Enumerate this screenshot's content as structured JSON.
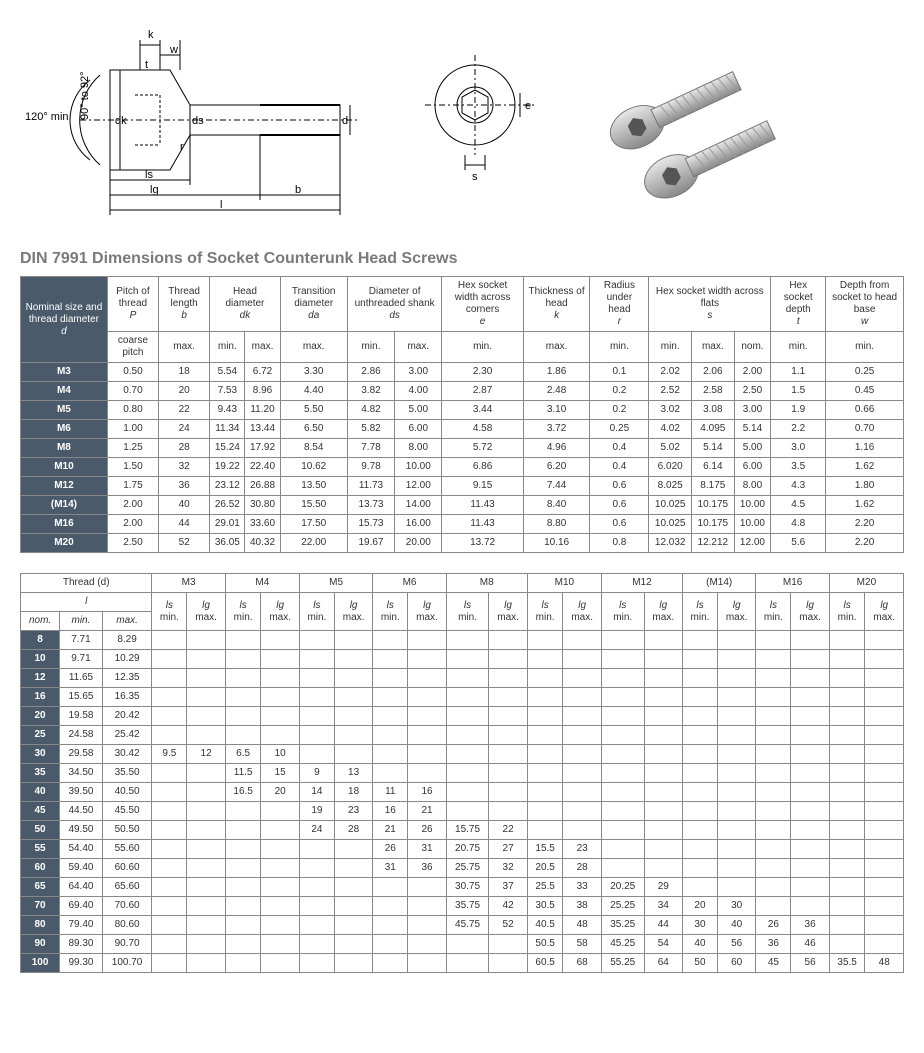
{
  "title": "DIN 7991 Dimensions of Socket Counterunk Head Screws",
  "diagram": {
    "angle_label": "120° min.",
    "angle_label2": "90° to 92°",
    "labels": [
      "k",
      "w",
      "t",
      "dk",
      "ds",
      "d",
      "r",
      "ls",
      "lg",
      "b",
      "l",
      "e",
      "s"
    ]
  },
  "table1": {
    "headers_top": [
      {
        "label": "Nominal size and thread diameter",
        "sub": "d",
        "rowspan": 2,
        "dark": true
      },
      {
        "label": "Pitch of thread",
        "sub": "P"
      },
      {
        "label": "Thread length",
        "sub": "b"
      },
      {
        "label": "Head diameter",
        "sub": "dk",
        "colspan": 2
      },
      {
        "label": "Transition diameter",
        "sub": "da"
      },
      {
        "label": "Diameter of unthreaded shank",
        "sub": "ds",
        "colspan": 2
      },
      {
        "label": "Hex socket width across corners",
        "sub": "e"
      },
      {
        "label": "Thickness of head",
        "sub": "k"
      },
      {
        "label": "Radius under head",
        "sub": "r"
      },
      {
        "label": "Hex socket width across flats",
        "sub": "s",
        "colspan": 3
      },
      {
        "label": "Hex socket depth",
        "sub": "t"
      },
      {
        "label": "Depth from socket to head base",
        "sub": "w"
      }
    ],
    "headers_sub": [
      "coarse pitch",
      "max.",
      "min.",
      "max.",
      "max.",
      "min.",
      "max.",
      "min.",
      "max.",
      "min.",
      "min.",
      "max.",
      "nom.",
      "min.",
      "min."
    ],
    "rows": [
      [
        "M3",
        "0.50",
        "18",
        "5.54",
        "6.72",
        "3.30",
        "2.86",
        "3.00",
        "2.30",
        "1.86",
        "0.1",
        "2.02",
        "2.06",
        "2.00",
        "1.1",
        "0.25"
      ],
      [
        "M4",
        "0.70",
        "20",
        "7.53",
        "8.96",
        "4.40",
        "3.82",
        "4.00",
        "2.87",
        "2.48",
        "0.2",
        "2.52",
        "2.58",
        "2.50",
        "1.5",
        "0.45"
      ],
      [
        "M5",
        "0.80",
        "22",
        "9.43",
        "11.20",
        "5.50",
        "4.82",
        "5.00",
        "3.44",
        "3.10",
        "0.2",
        "3.02",
        "3.08",
        "3.00",
        "1.9",
        "0.66"
      ],
      [
        "M6",
        "1.00",
        "24",
        "11.34",
        "13.44",
        "6.50",
        "5.82",
        "6.00",
        "4.58",
        "3.72",
        "0.25",
        "4.02",
        "4.095",
        "5.14",
        "2.2",
        "0.70"
      ],
      [
        "M8",
        "1.25",
        "28",
        "15.24",
        "17.92",
        "8.54",
        "7.78",
        "8.00",
        "5.72",
        "4.96",
        "0.4",
        "5.02",
        "5.14",
        "5.00",
        "3.0",
        "1.16"
      ],
      [
        "M10",
        "1.50",
        "32",
        "19.22",
        "22.40",
        "10.62",
        "9.78",
        "10.00",
        "6.86",
        "6.20",
        "0.4",
        "6.020",
        "6.14",
        "6.00",
        "3.5",
        "1.62"
      ],
      [
        "M12",
        "1.75",
        "36",
        "23.12",
        "26.88",
        "13.50",
        "11.73",
        "12.00",
        "9.15",
        "7.44",
        "0.6",
        "8.025",
        "8.175",
        "8.00",
        "4.3",
        "1.80"
      ],
      [
        "(M14)",
        "2.00",
        "40",
        "26.52",
        "30.80",
        "15.50",
        "13.73",
        "14.00",
        "11.43",
        "8.40",
        "0.6",
        "10.025",
        "10.175",
        "10.00",
        "4.5",
        "1.62"
      ],
      [
        "M16",
        "2.00",
        "44",
        "29.01",
        "33.60",
        "17.50",
        "15.73",
        "16.00",
        "11.43",
        "8.80",
        "0.6",
        "10.025",
        "10.175",
        "10.00",
        "4.8",
        "2.20"
      ],
      [
        "M20",
        "2.50",
        "52",
        "36.05",
        "40.32",
        "22.00",
        "19.67",
        "20.00",
        "13.72",
        "10.16",
        "0.8",
        "12.032",
        "12.212",
        "12.00",
        "5.6",
        "2.20"
      ]
    ]
  },
  "table2": {
    "thread_label": "Thread (d)",
    "l_label": "l",
    "sizes": [
      "M3",
      "M4",
      "M5",
      "M6",
      "M8",
      "M10",
      "M12",
      "(M14)",
      "M16",
      "M20"
    ],
    "sub_ls": "ls",
    "sub_lg": "lg",
    "sub_min": "min.",
    "sub_max": "max.",
    "nom_label": "nom.",
    "min_label": "min.",
    "max_label": "max.",
    "rows": [
      [
        "8",
        "7.71",
        "8.29",
        "",
        "",
        "",
        "",
        "",
        "",
        "",
        "",
        "",
        "",
        "",
        "",
        "",
        "",
        "",
        "",
        "",
        "",
        "",
        ""
      ],
      [
        "10",
        "9.71",
        "10.29",
        "",
        "",
        "",
        "",
        "",
        "",
        "",
        "",
        "",
        "",
        "",
        "",
        "",
        "",
        "",
        "",
        "",
        "",
        "",
        ""
      ],
      [
        "12",
        "11.65",
        "12.35",
        "",
        "",
        "",
        "",
        "",
        "",
        "",
        "",
        "",
        "",
        "",
        "",
        "",
        "",
        "",
        "",
        "",
        "",
        "",
        ""
      ],
      [
        "16",
        "15.65",
        "16.35",
        "",
        "",
        "",
        "",
        "",
        "",
        "",
        "",
        "",
        "",
        "",
        "",
        "",
        "",
        "",
        "",
        "",
        "",
        "",
        ""
      ],
      [
        "20",
        "19.58",
        "20.42",
        "",
        "",
        "",
        "",
        "",
        "",
        "",
        "",
        "",
        "",
        "",
        "",
        "",
        "",
        "",
        "",
        "",
        "",
        "",
        ""
      ],
      [
        "25",
        "24.58",
        "25.42",
        "",
        "",
        "",
        "",
        "",
        "",
        "",
        "",
        "",
        "",
        "",
        "",
        "",
        "",
        "",
        "",
        "",
        "",
        "",
        ""
      ],
      [
        "30",
        "29.58",
        "30.42",
        "9.5",
        "12",
        "6.5",
        "10",
        "",
        "",
        "",
        "",
        "",
        "",
        "",
        "",
        "",
        "",
        "",
        "",
        "",
        "",
        "",
        ""
      ],
      [
        "35",
        "34.50",
        "35.50",
        "",
        "",
        "11.5",
        "15",
        "9",
        "13",
        "",
        "",
        "",
        "",
        "",
        "",
        "",
        "",
        "",
        "",
        "",
        "",
        "",
        ""
      ],
      [
        "40",
        "39.50",
        "40.50",
        "",
        "",
        "16.5",
        "20",
        "14",
        "18",
        "11",
        "16",
        "",
        "",
        "",
        "",
        "",
        "",
        "",
        "",
        "",
        "",
        "",
        ""
      ],
      [
        "45",
        "44.50",
        "45.50",
        "",
        "",
        "",
        "",
        "19",
        "23",
        "16",
        "21",
        "",
        "",
        "",
        "",
        "",
        "",
        "",
        "",
        "",
        "",
        "",
        ""
      ],
      [
        "50",
        "49.50",
        "50.50",
        "",
        "",
        "",
        "",
        "24",
        "28",
        "21",
        "26",
        "15.75",
        "22",
        "",
        "",
        "",
        "",
        "",
        "",
        "",
        "",
        "",
        ""
      ],
      [
        "55",
        "54.40",
        "55.60",
        "",
        "",
        "",
        "",
        "",
        "",
        "26",
        "31",
        "20.75",
        "27",
        "15.5",
        "23",
        "",
        "",
        "",
        "",
        "",
        "",
        "",
        ""
      ],
      [
        "60",
        "59.40",
        "60.60",
        "",
        "",
        "",
        "",
        "",
        "",
        "31",
        "36",
        "25.75",
        "32",
        "20.5",
        "28",
        "",
        "",
        "",
        "",
        "",
        "",
        "",
        ""
      ],
      [
        "65",
        "64.40",
        "65.60",
        "",
        "",
        "",
        "",
        "",
        "",
        "",
        "",
        "30.75",
        "37",
        "25.5",
        "33",
        "20.25",
        "29",
        "",
        "",
        "",
        "",
        "",
        ""
      ],
      [
        "70",
        "69.40",
        "70.60",
        "",
        "",
        "",
        "",
        "",
        "",
        "",
        "",
        "35.75",
        "42",
        "30.5",
        "38",
        "25.25",
        "34",
        "20",
        "30",
        "",
        "",
        "",
        ""
      ],
      [
        "80",
        "79.40",
        "80.60",
        "",
        "",
        "",
        "",
        "",
        "",
        "",
        "",
        "45.75",
        "52",
        "40.5",
        "48",
        "35.25",
        "44",
        "30",
        "40",
        "26",
        "36",
        "",
        ""
      ],
      [
        "90",
        "89.30",
        "90.70",
        "",
        "",
        "",
        "",
        "",
        "",
        "",
        "",
        "",
        "",
        "50.5",
        "58",
        "45.25",
        "54",
        "40",
        "56",
        "36",
        "46",
        "",
        ""
      ],
      [
        "100",
        "99.30",
        "100.70",
        "",
        "",
        "",
        "",
        "",
        "",
        "",
        "",
        "",
        "",
        "60.5",
        "68",
        "55.25",
        "64",
        "50",
        "60",
        "45",
        "56",
        "35.5",
        "48"
      ]
    ]
  }
}
